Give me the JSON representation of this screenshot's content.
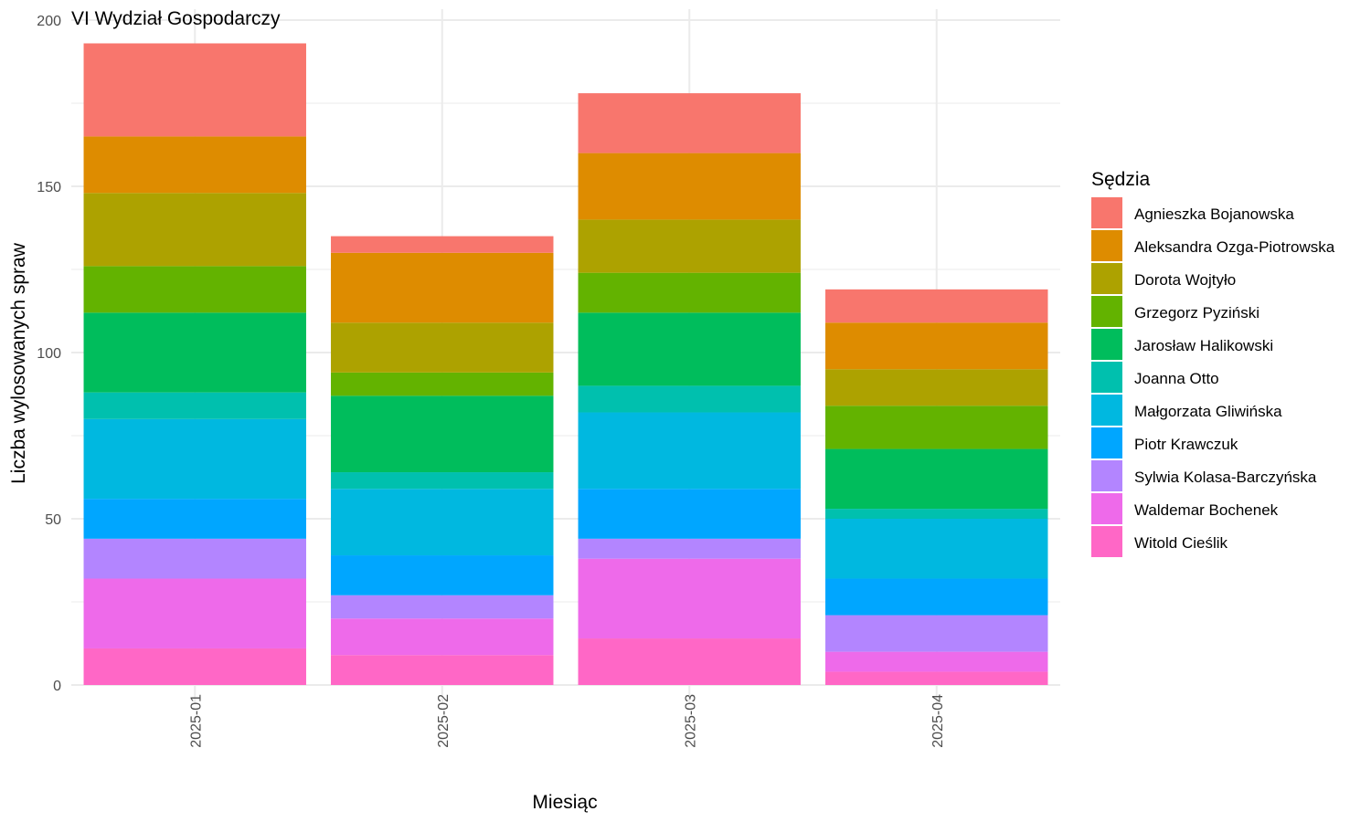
{
  "chart_data": {
    "type": "bar",
    "stacked": true,
    "title": "VI Wydział Gospodarczy",
    "xlabel": "Miesiąc",
    "ylabel": "Liczba wylosowanych spraw",
    "ylim": [
      0,
      200
    ],
    "yticks": [
      0,
      50,
      100,
      150,
      200
    ],
    "grid": true,
    "legend": {
      "title": "Sędzia",
      "position": "right"
    },
    "categories": [
      "2025-01",
      "2025-02",
      "2025-03",
      "2025-04"
    ],
    "series": [
      {
        "name": "Witold Cieślik",
        "color": "#FF67C6",
        "values": [
          11,
          9,
          14,
          4
        ]
      },
      {
        "name": "Waldemar Bochenek",
        "color": "#EE6AEA",
        "values": [
          21,
          11,
          24,
          6
        ]
      },
      {
        "name": "Sylwia Kolasa-Barczyńska",
        "color": "#B385FF",
        "values": [
          12,
          7,
          6,
          11
        ]
      },
      {
        "name": "Piotr Krawczuk",
        "color": "#00A6FF",
        "values": [
          12,
          12,
          15,
          11
        ]
      },
      {
        "name": "Małgorzata Gliwińska",
        "color": "#00B8E0",
        "values": [
          24,
          20,
          23,
          18
        ]
      },
      {
        "name": "Joanna Otto",
        "color": "#00C0AE",
        "values": [
          8,
          5,
          8,
          3
        ]
      },
      {
        "name": "Jarosław Halikowski",
        "color": "#00BD5C",
        "values": [
          24,
          23,
          22,
          18
        ]
      },
      {
        "name": "Grzegorz Pyziński",
        "color": "#63B300",
        "values": [
          14,
          7,
          12,
          13
        ]
      },
      {
        "name": "Dorota Wojtyło",
        "color": "#ADA200",
        "values": [
          22,
          15,
          16,
          11
        ]
      },
      {
        "name": "Aleksandra Ozga-Piotrowska",
        "color": "#DE8C00",
        "values": [
          17,
          21,
          20,
          14
        ]
      },
      {
        "name": "Agnieszka Bojanowska",
        "color": "#F8766D",
        "values": [
          28,
          5,
          18,
          10
        ]
      }
    ]
  }
}
